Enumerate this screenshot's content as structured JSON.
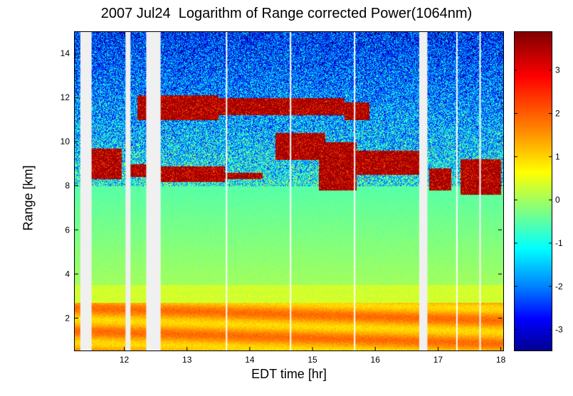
{
  "chart_data": {
    "type": "heatmap",
    "title": "2007 Jul24  Logarithm of Range corrected Power(1064nm)",
    "xlabel": "EDT time [hr]",
    "ylabel": "Range [km]",
    "xlim": [
      11.2,
      18.05
    ],
    "ylim": [
      0.5,
      15
    ],
    "xticks": [
      12,
      13,
      14,
      15,
      16,
      17,
      18
    ],
    "yticks": [
      2,
      4,
      6,
      8,
      10,
      12,
      14
    ],
    "colorbar": {
      "min": -3.5,
      "max": 3.9,
      "ticks": [
        -3,
        -2,
        -1,
        0,
        1,
        2,
        3
      ],
      "colormap": "jet"
    },
    "gaps": [
      [
        11.3,
        11.48
      ],
      [
        12.02,
        12.1
      ],
      [
        12.35,
        12.58
      ],
      [
        16.7,
        16.83
      ]
    ],
    "thin_gaps": [
      13.63,
      14.65,
      15.67,
      17.3,
      17.67
    ],
    "cloud_layers": [
      {
        "t": [
          11.3,
          11.95
        ],
        "y": [
          8.3,
          9.7
        ]
      },
      {
        "t": [
          12.02,
          12.35
        ],
        "y": [
          8.4,
          9.0
        ]
      },
      {
        "t": [
          12.58,
          13.6
        ],
        "y": [
          8.2,
          8.9
        ]
      },
      {
        "t": [
          13.6,
          14.2
        ],
        "y": [
          8.3,
          8.6
        ]
      },
      {
        "t": [
          12.2,
          13.5
        ],
        "y": [
          11.0,
          12.1
        ]
      },
      {
        "t": [
          13.5,
          15.5
        ],
        "y": [
          11.2,
          12.0
        ]
      },
      {
        "t": [
          15.5,
          15.9
        ],
        "y": [
          11.0,
          11.8
        ]
      },
      {
        "t": [
          14.4,
          15.2
        ],
        "y": [
          9.2,
          10.4
        ]
      },
      {
        "t": [
          15.1,
          15.7
        ],
        "y": [
          7.8,
          10.0
        ]
      },
      {
        "t": [
          15.7,
          16.7
        ],
        "y": [
          8.5,
          9.6
        ]
      },
      {
        "t": [
          16.85,
          17.2
        ],
        "y": [
          7.8,
          8.8
        ]
      },
      {
        "t": [
          17.35,
          18.0
        ],
        "y": [
          7.6,
          9.2
        ]
      }
    ],
    "colors": {
      "gap": "#f0f0f0",
      "thin_gap": "#ffffff"
    }
  }
}
